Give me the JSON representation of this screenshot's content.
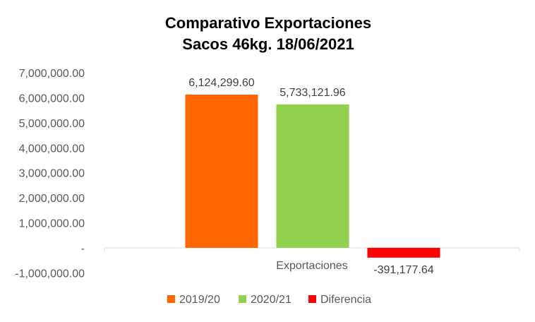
{
  "chart_data": {
    "type": "bar",
    "title_lines": [
      "Comparativo Exportaciones",
      "Sacos 46kg. 18/06/2021"
    ],
    "categories": [
      "Exportaciones"
    ],
    "series": [
      {
        "name": "2019/20",
        "values": [
          6124299.6
        ],
        "label": "6,124,299.60",
        "color": "#FF6600"
      },
      {
        "name": "2020/21",
        "values": [
          5733121.96
        ],
        "label": "5,733,121.96",
        "color": "#92D050"
      },
      {
        "name": "Diferencia",
        "values": [
          -391177.64
        ],
        "label": "-391,177.64",
        "color": "#FF0000"
      }
    ],
    "ylim": [
      -1000000,
      7000000
    ],
    "yticks": [
      {
        "value": 7000000,
        "label": "7,000,000.00"
      },
      {
        "value": 6000000,
        "label": "6,000,000.00"
      },
      {
        "value": 5000000,
        "label": "5,000,000.00"
      },
      {
        "value": 4000000,
        "label": "4,000,000.00"
      },
      {
        "value": 3000000,
        "label": "3,000,000.00"
      },
      {
        "value": 2000000,
        "label": "2,000,000.00"
      },
      {
        "value": 1000000,
        "label": "1,000,000.00"
      },
      {
        "value": 0,
        "label": "-"
      },
      {
        "value": -1000000,
        "label": "-1,000,000.00"
      }
    ],
    "grid": false,
    "legend_position": "bottom"
  }
}
